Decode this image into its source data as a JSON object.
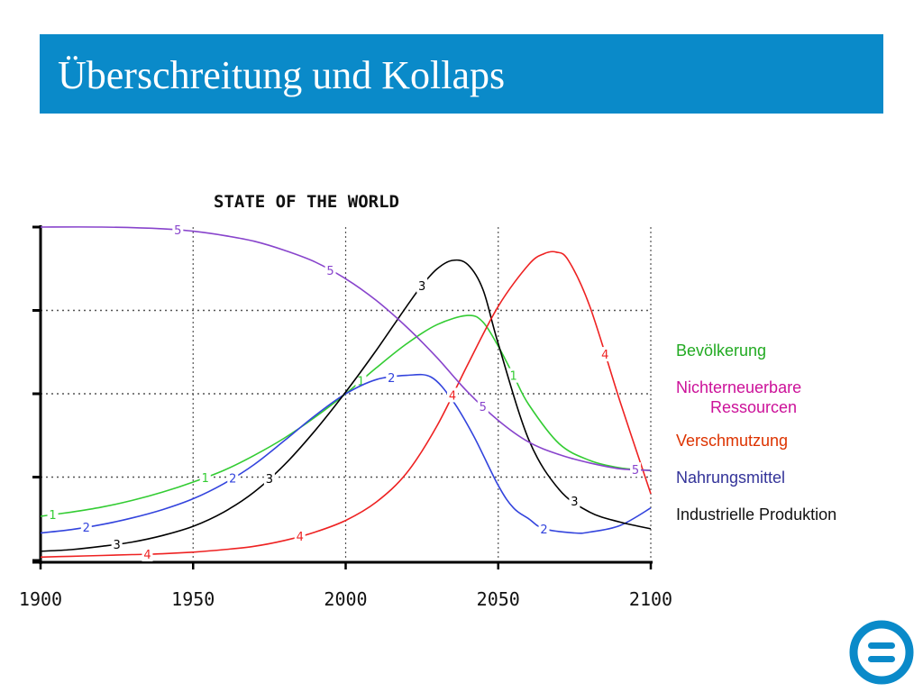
{
  "slide": {
    "title": "Überschreitung und Kollaps"
  },
  "legend": {
    "items": [
      {
        "text": "Bevölkerung",
        "series": "1",
        "color": "#22aa22"
      },
      {
        "line1": "Nichterneuerbare",
        "line2": "Ressourcen",
        "series": "5",
        "color": "#cc1199"
      },
      {
        "text": "Verschmutzung",
        "series": "4",
        "color": "#dd3300"
      },
      {
        "text": "Nahrungsmittel",
        "series": "2",
        "color": "#333399"
      },
      {
        "text": "Industrielle Produktion",
        "series": "3",
        "color": "#111111"
      }
    ]
  },
  "logo": {
    "icon": "equals-circle-icon",
    "color": "#0a8ac9"
  },
  "chart_data": {
    "type": "line",
    "title": "STATE OF THE WORLD",
    "xlabel": "",
    "ylabel": "",
    "xlim": [
      1900,
      2100
    ],
    "ylim": [
      0,
      4
    ],
    "xticks": [
      1900,
      1950,
      2000,
      2050,
      2100
    ],
    "grid": true,
    "series": [
      {
        "name": "1",
        "color": "#33cc33",
        "x": [
          1900,
          1910,
          1920,
          1930,
          1940,
          1950,
          1960,
          1970,
          1980,
          1990,
          2000,
          2010,
          2020,
          2030,
          2040,
          2045,
          2050,
          2055,
          2060,
          2070,
          2080,
          2090,
          2100
        ],
        "y": [
          0.53,
          0.58,
          0.64,
          0.72,
          0.82,
          0.94,
          1.08,
          1.26,
          1.47,
          1.72,
          2.0,
          2.31,
          2.6,
          2.83,
          2.94,
          2.86,
          2.57,
          2.22,
          1.87,
          1.4,
          1.2,
          1.11,
          1.08
        ],
        "label_x": [
          1904,
          1954,
          2005,
          2055
        ]
      },
      {
        "name": "2",
        "color": "#3344dd",
        "x": [
          1900,
          1910,
          1920,
          1930,
          1940,
          1950,
          1960,
          1970,
          1980,
          1990,
          2000,
          2010,
          2020,
          2028,
          2035,
          2042,
          2050,
          2055,
          2060,
          2065,
          2075,
          2080,
          2090,
          2100
        ],
        "y": [
          0.33,
          0.37,
          0.43,
          0.51,
          0.61,
          0.74,
          0.92,
          1.15,
          1.44,
          1.74,
          2.0,
          2.17,
          2.22,
          2.2,
          1.92,
          1.49,
          0.9,
          0.63,
          0.5,
          0.38,
          0.33,
          0.34,
          0.42,
          0.63
        ],
        "label_x": [
          1915,
          1963,
          2015,
          2065
        ]
      },
      {
        "name": "3",
        "color": "#000000",
        "x": [
          1900,
          1910,
          1920,
          1930,
          1940,
          1950,
          1960,
          1970,
          1980,
          1990,
          2000,
          2010,
          2020,
          2025,
          2030,
          2035,
          2040,
          2045,
          2050,
          2060,
          2070,
          2080,
          2090,
          2100
        ],
        "y": [
          0.11,
          0.13,
          0.17,
          0.22,
          0.3,
          0.41,
          0.58,
          0.82,
          1.15,
          1.56,
          2.02,
          2.52,
          3.05,
          3.3,
          3.5,
          3.6,
          3.55,
          3.25,
          2.6,
          1.45,
          0.85,
          0.58,
          0.46,
          0.38
        ],
        "label_x": [
          1925,
          1975,
          2025,
          2075
        ]
      },
      {
        "name": "4",
        "color": "#ee2222",
        "x": [
          1900,
          1910,
          1920,
          1930,
          1940,
          1950,
          1960,
          1970,
          1980,
          1990,
          2000,
          2010,
          2020,
          2030,
          2040,
          2050,
          2060,
          2065,
          2069,
          2073,
          2080,
          2090,
          2100
        ],
        "y": [
          0.04,
          0.05,
          0.06,
          0.07,
          0.08,
          0.1,
          0.13,
          0.17,
          0.24,
          0.34,
          0.48,
          0.7,
          1.05,
          1.62,
          2.35,
          3.05,
          3.55,
          3.68,
          3.7,
          3.6,
          3.05,
          1.9,
          0.8
        ],
        "label_x": [
          1935,
          1985,
          2035,
          2085
        ]
      },
      {
        "name": "5",
        "color": "#8844cc",
        "x": [
          1900,
          1920,
          1940,
          1950,
          1960,
          1970,
          1980,
          1990,
          2000,
          2010,
          2020,
          2030,
          2040,
          2050,
          2060,
          2070,
          2080,
          2090,
          2100
        ],
        "y": [
          4.0,
          4.0,
          3.98,
          3.95,
          3.9,
          3.83,
          3.72,
          3.58,
          3.38,
          3.12,
          2.8,
          2.43,
          2.02,
          1.68,
          1.42,
          1.27,
          1.17,
          1.1,
          1.08
        ],
        "label_x": [
          1945,
          1995,
          2045,
          2095
        ]
      }
    ]
  }
}
